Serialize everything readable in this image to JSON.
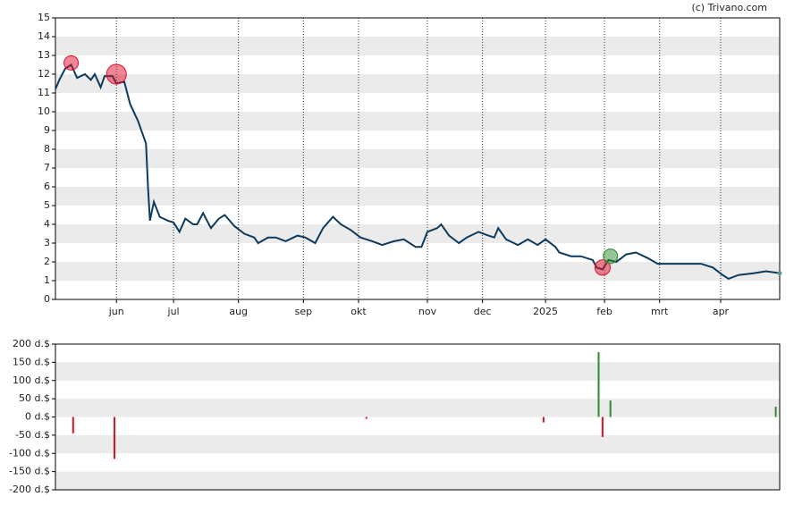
{
  "watermark": "(c) Trivano.com",
  "chart_data": [
    {
      "type": "line",
      "color": "#0e3a5c",
      "xlim": [
        0,
        368
      ],
      "ylim": [
        0,
        15
      ],
      "xticks": [
        {
          "value": 31,
          "label": "jun"
        },
        {
          "value": 60,
          "label": "jul"
        },
        {
          "value": 93,
          "label": "aug"
        },
        {
          "value": 126,
          "label": "sep"
        },
        {
          "value": 154,
          "label": "okt"
        },
        {
          "value": 189,
          "label": "nov"
        },
        {
          "value": 217,
          "label": "dec"
        },
        {
          "value": 249,
          "label": "2025"
        },
        {
          "value": 279,
          "label": "feb"
        },
        {
          "value": 307,
          "label": "mrt"
        },
        {
          "value": 338,
          "label": "apr"
        }
      ],
      "yticks": [
        0,
        1,
        2,
        3,
        4,
        5,
        6,
        7,
        8,
        9,
        10,
        11,
        12,
        13,
        14,
        15
      ],
      "x": [
        0,
        2,
        5,
        8,
        11,
        15,
        18,
        20,
        23,
        25,
        29,
        31,
        35,
        38,
        42,
        46,
        47,
        48,
        50,
        53,
        57,
        60,
        63,
        66,
        70,
        72,
        75,
        79,
        83,
        86,
        91,
        96,
        101,
        103,
        108,
        112,
        117,
        123,
        127,
        132,
        136,
        141,
        145,
        150,
        155,
        161,
        166,
        172,
        177,
        183,
        186,
        189,
        194,
        196,
        200,
        205,
        209,
        215,
        220,
        223,
        225,
        229,
        235,
        240,
        245,
        249,
        254,
        256,
        262,
        267,
        273,
        275,
        278,
        281,
        285,
        290,
        295,
        301,
        306,
        312,
        317,
        323,
        328,
        334,
        339,
        342,
        347,
        355,
        361,
        368
      ],
      "values": [
        11.2,
        11.7,
        12.3,
        12.5,
        11.8,
        12.0,
        11.7,
        12.0,
        11.3,
        11.9,
        11.9,
        11.5,
        11.6,
        10.4,
        9.5,
        8.3,
        6.0,
        4.2,
        5.2,
        4.4,
        4.2,
        4.1,
        3.6,
        4.3,
        4.0,
        4.0,
        4.6,
        3.8,
        4.3,
        4.5,
        3.9,
        3.5,
        3.3,
        3.0,
        3.3,
        3.3,
        3.1,
        3.4,
        3.3,
        3.0,
        3.8,
        4.4,
        4.0,
        3.7,
        3.3,
        3.1,
        2.9,
        3.1,
        3.2,
        2.8,
        2.8,
        3.6,
        3.8,
        4.0,
        3.4,
        3.0,
        3.3,
        3.6,
        3.4,
        3.3,
        3.8,
        3.2,
        2.9,
        3.2,
        2.9,
        3.2,
        2.8,
        2.5,
        2.3,
        2.3,
        2.1,
        1.7,
        1.6,
        2.1,
        2.0,
        2.4,
        2.5,
        2.2,
        1.9,
        1.9,
        1.9,
        1.9,
        1.9,
        1.7,
        1.3,
        1.1,
        1.3,
        1.4,
        1.5,
        1.4
      ],
      "markers": [
        {
          "x": 8,
          "y": 12.6
        },
        {
          "x": 31,
          "y": 12.0
        },
        {
          "x": 278,
          "y": 1.7
        },
        {
          "x": 282,
          "y": 2.3
        }
      ]
    },
    {
      "type": "bar",
      "xlim": [
        0,
        368
      ],
      "ylim": [
        -200,
        200
      ],
      "yticks": [
        {
          "value": -200,
          "label": "-200 d.$"
        },
        {
          "value": -150,
          "label": "-150 d.$"
        },
        {
          "value": -100,
          "label": "-100 d.$"
        },
        {
          "value": -50,
          "label": "-50 d.$"
        },
        {
          "value": 0,
          "label": "0 d.$"
        },
        {
          "value": 50,
          "label": "50 d.$"
        },
        {
          "value": 100,
          "label": "100 d.$"
        },
        {
          "value": 150,
          "label": "150 d.$"
        },
        {
          "value": 200,
          "label": "200 d.$"
        }
      ],
      "x": [
        9,
        30,
        158,
        248,
        276,
        278,
        282,
        366
      ],
      "values": [
        -45,
        -115,
        -5,
        -15,
        178,
        -55,
        45,
        28
      ],
      "pos_color": "#2e8b2e",
      "neg_color": "#e0102a"
    }
  ]
}
